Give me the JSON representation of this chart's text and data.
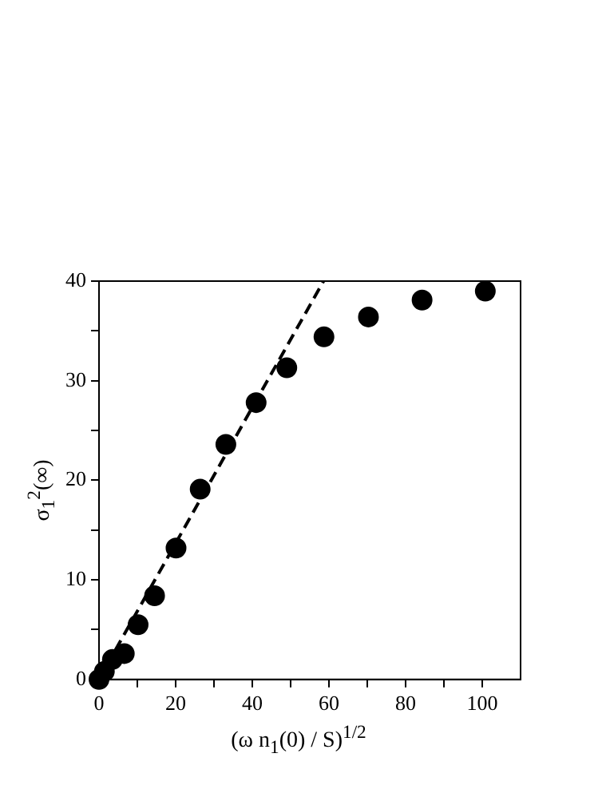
{
  "chart_data": {
    "type": "scatter",
    "xlabel": "(ω n$_{1}$(0) / S)$^{1/2}$",
    "ylabel": "σ$_{1}$$^{2}$(∞)",
    "xlim": [
      0,
      110
    ],
    "ylim": [
      0,
      40
    ],
    "xticks": [
      0,
      {
        "value": 10,
        "label": null
      },
      20,
      {
        "value": 30,
        "label": null
      },
      40,
      {
        "value": 50,
        "label": null
      },
      60,
      {
        "value": 70,
        "label": null
      },
      80,
      {
        "value": 90,
        "label": null
      },
      100
    ],
    "yticks": [
      0,
      {
        "value": 5,
        "label": null
      },
      10,
      {
        "value": 15,
        "label": null
      },
      20,
      {
        "value": 25,
        "label": null
      },
      30,
      {
        "value": 35,
        "label": null
      },
      40
    ],
    "grid": false,
    "legend": false,
    "marker": "circle",
    "series": [
      {
        "type": "scatter",
        "color": "#000000",
        "x": [
          0,
          1.4,
          3.5,
          6.6,
          10.2,
          14.5,
          20.1,
          26.4,
          33.1,
          41,
          49,
          58.7,
          70.3,
          84.3,
          100.8
        ],
        "values": [
          0,
          0.8,
          2.0,
          2.6,
          5.5,
          8.4,
          13.2,
          19.1,
          23.6,
          27.8,
          31.3,
          34.4,
          36.4,
          38.1,
          39.0
        ]
      },
      {
        "type": "line",
        "color": "#000000",
        "line_style": "dashed",
        "marker": "none",
        "x": [
          2,
          58.6
        ],
        "values": [
          1.4,
          40
        ]
      }
    ]
  }
}
